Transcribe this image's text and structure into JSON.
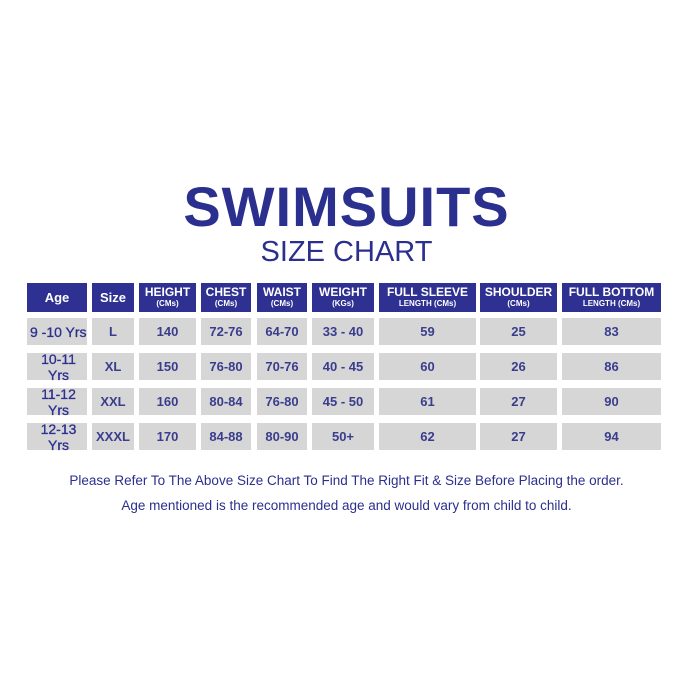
{
  "title": "SWIMSUITS",
  "subtitle": "SIZE CHART",
  "colors": {
    "header_bg": "#2e3192",
    "cell_bg": "#d6d6d6",
    "text": "#2b2f8e"
  },
  "headers": [
    {
      "label": "Age",
      "unit": ""
    },
    {
      "label": "Size",
      "unit": ""
    },
    {
      "label": "HEIGHT",
      "unit": "(CMs)"
    },
    {
      "label": "CHEST",
      "unit": "(CMs)"
    },
    {
      "label": "WAIST",
      "unit": "(CMs)"
    },
    {
      "label": "WEIGHT",
      "unit": "(KGs)"
    },
    {
      "label": "FULL SLEEVE",
      "unit": "LENGTH (CMs)"
    },
    {
      "label": "SHOULDER",
      "unit": "(CMs)"
    },
    {
      "label": "FULL BOTTOM",
      "unit": "LENGTH (CMs)"
    }
  ],
  "rows": [
    [
      "9 -10 Yrs",
      "L",
      "140",
      "72-76",
      "64-70",
      "33 - 40",
      "59",
      "25",
      "83"
    ],
    [
      "10-11 Yrs",
      "XL",
      "150",
      "76-80",
      "70-76",
      "40 - 45",
      "60",
      "26",
      "86"
    ],
    [
      "11-12 Yrs",
      "XXL",
      "160",
      "80-84",
      "76-80",
      "45 - 50",
      "61",
      "27",
      "90"
    ],
    [
      "12-13 Yrs",
      "XXXL",
      "170",
      "84-88",
      "80-90",
      "50+",
      "62",
      "27",
      "94"
    ]
  ],
  "notes": [
    "Please  Refer To The Above Size Chart To Find The Right Fit & Size Before Placing the order.",
    "Age mentioned is the recommended age and would vary from child to child."
  ]
}
